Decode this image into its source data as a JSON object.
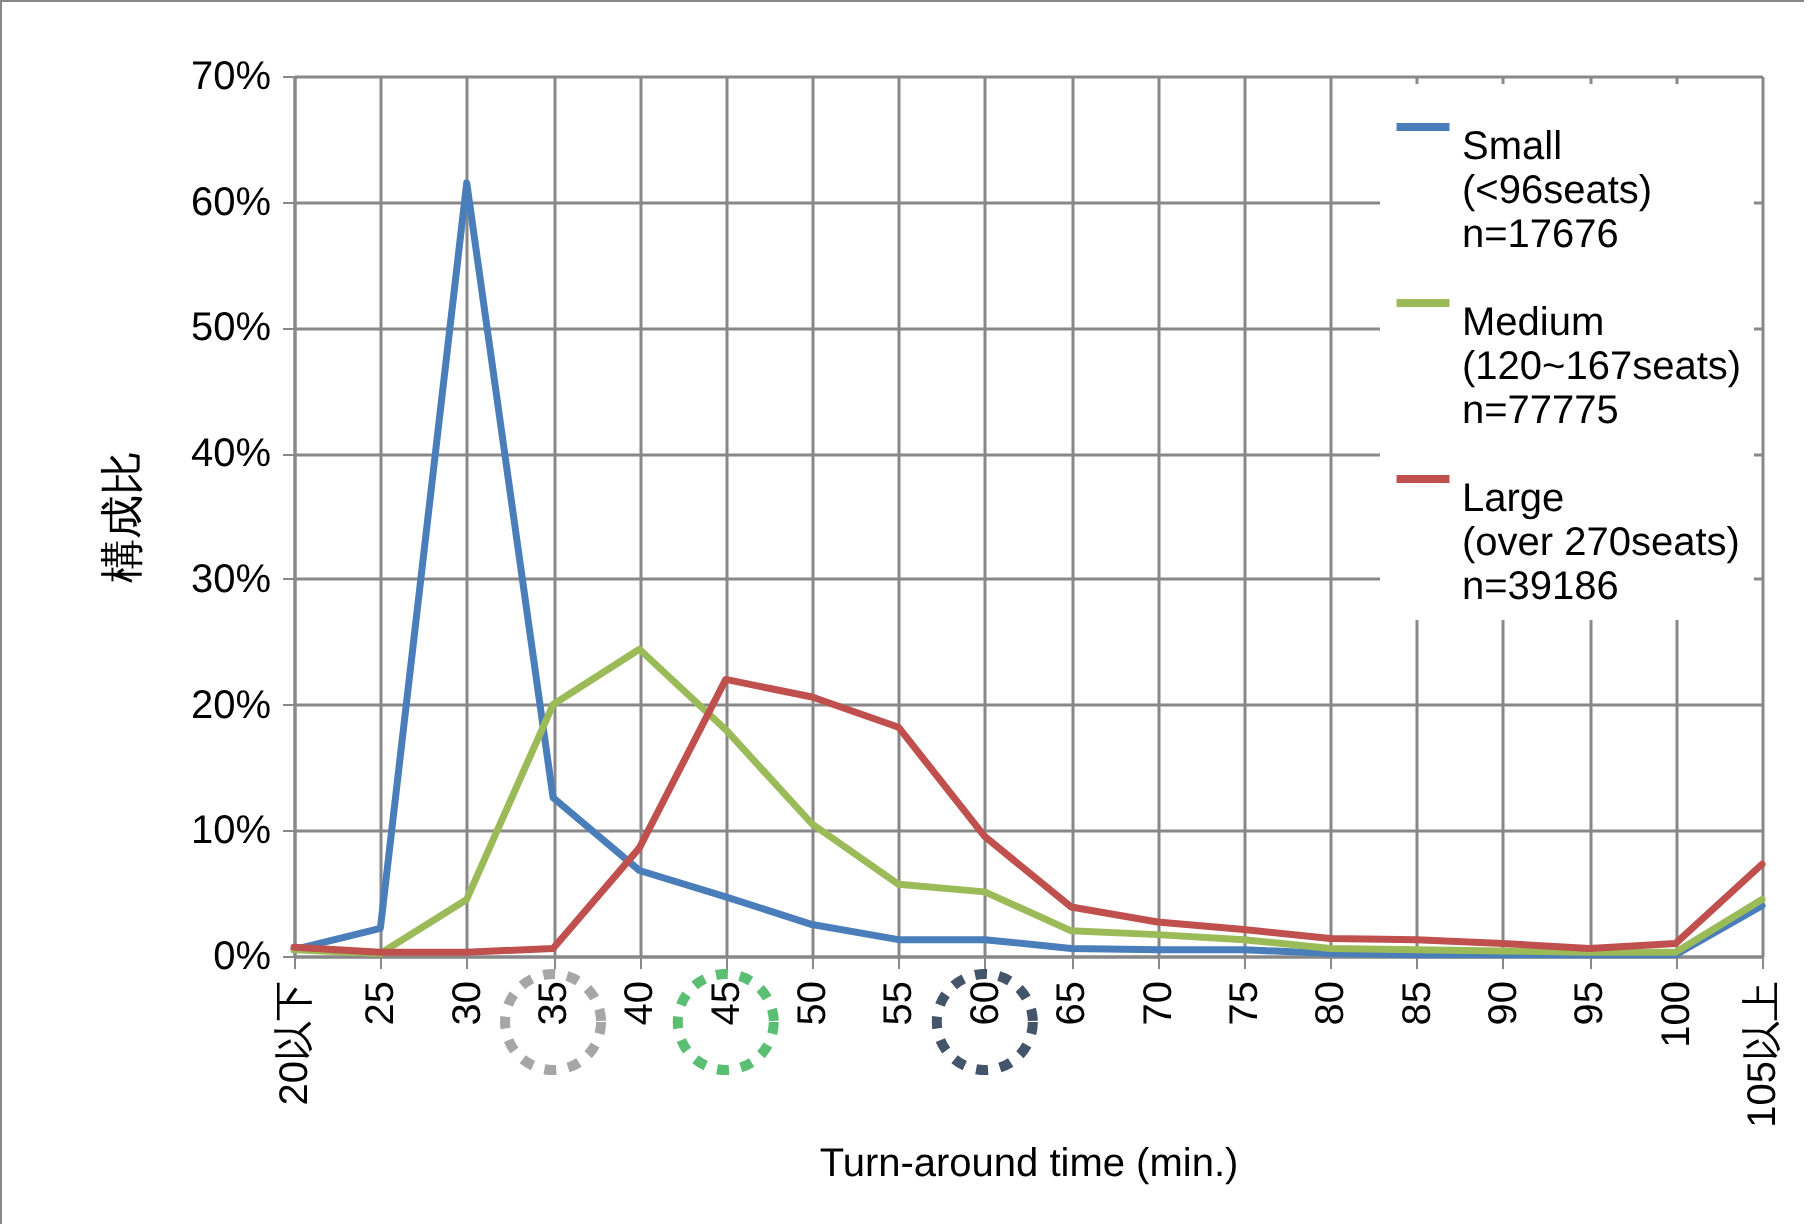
{
  "chart_data": {
    "type": "line",
    "xlabel": "Turn-around time (min.)",
    "ylabel": "構成比",
    "categories": [
      "20以下",
      "25",
      "30",
      "35",
      "40",
      "45",
      "50",
      "55",
      "60",
      "65",
      "70",
      "75",
      "80",
      "85",
      "90",
      "95",
      "100",
      "105以上"
    ],
    "series": [
      {
        "name": "Small\n(<96seats)\nn=17676",
        "color": "#4a7ebb",
        "values": [
          0.5,
          2.2,
          61.5,
          12.6,
          6.8,
          4.7,
          2.5,
          1.3,
          1.3,
          0.6,
          0.5,
          0.5,
          0.2,
          0.1,
          0.1,
          0.1,
          0.1,
          4.0
        ]
      },
      {
        "name": "Medium\n(120~167seats)\nn=77775",
        "color": "#9bbb59",
        "values": [
          0.5,
          0.2,
          4.5,
          20.0,
          24.4,
          18.0,
          10.5,
          5.7,
          5.1,
          2.0,
          1.7,
          1.3,
          0.6,
          0.5,
          0.4,
          0.3,
          0.3,
          4.5
        ]
      },
      {
        "name": "Large\n(over 270seats)\nn=39186",
        "color": "#c0504d",
        "values": [
          0.7,
          0.3,
          0.3,
          0.6,
          8.6,
          22.0,
          20.6,
          18.2,
          9.5,
          3.9,
          2.7,
          2.1,
          1.4,
          1.3,
          1.0,
          0.6,
          1.0,
          7.3
        ]
      }
    ],
    "ylim": [
      0,
      70
    ],
    "yticks": [
      {
        "value": 0,
        "label": "0%"
      },
      {
        "value": 10,
        "label": "10%"
      },
      {
        "value": 20,
        "label": "20%"
      },
      {
        "value": 30,
        "label": "30%"
      },
      {
        "value": 40,
        "label": "40%"
      },
      {
        "value": 50,
        "label": "50%"
      },
      {
        "value": 60,
        "label": "60%"
      },
      {
        "value": 70,
        "label": "70%"
      }
    ],
    "grid": true,
    "legend": "top right",
    "marker": "none",
    "line_style": "solid"
  }
}
